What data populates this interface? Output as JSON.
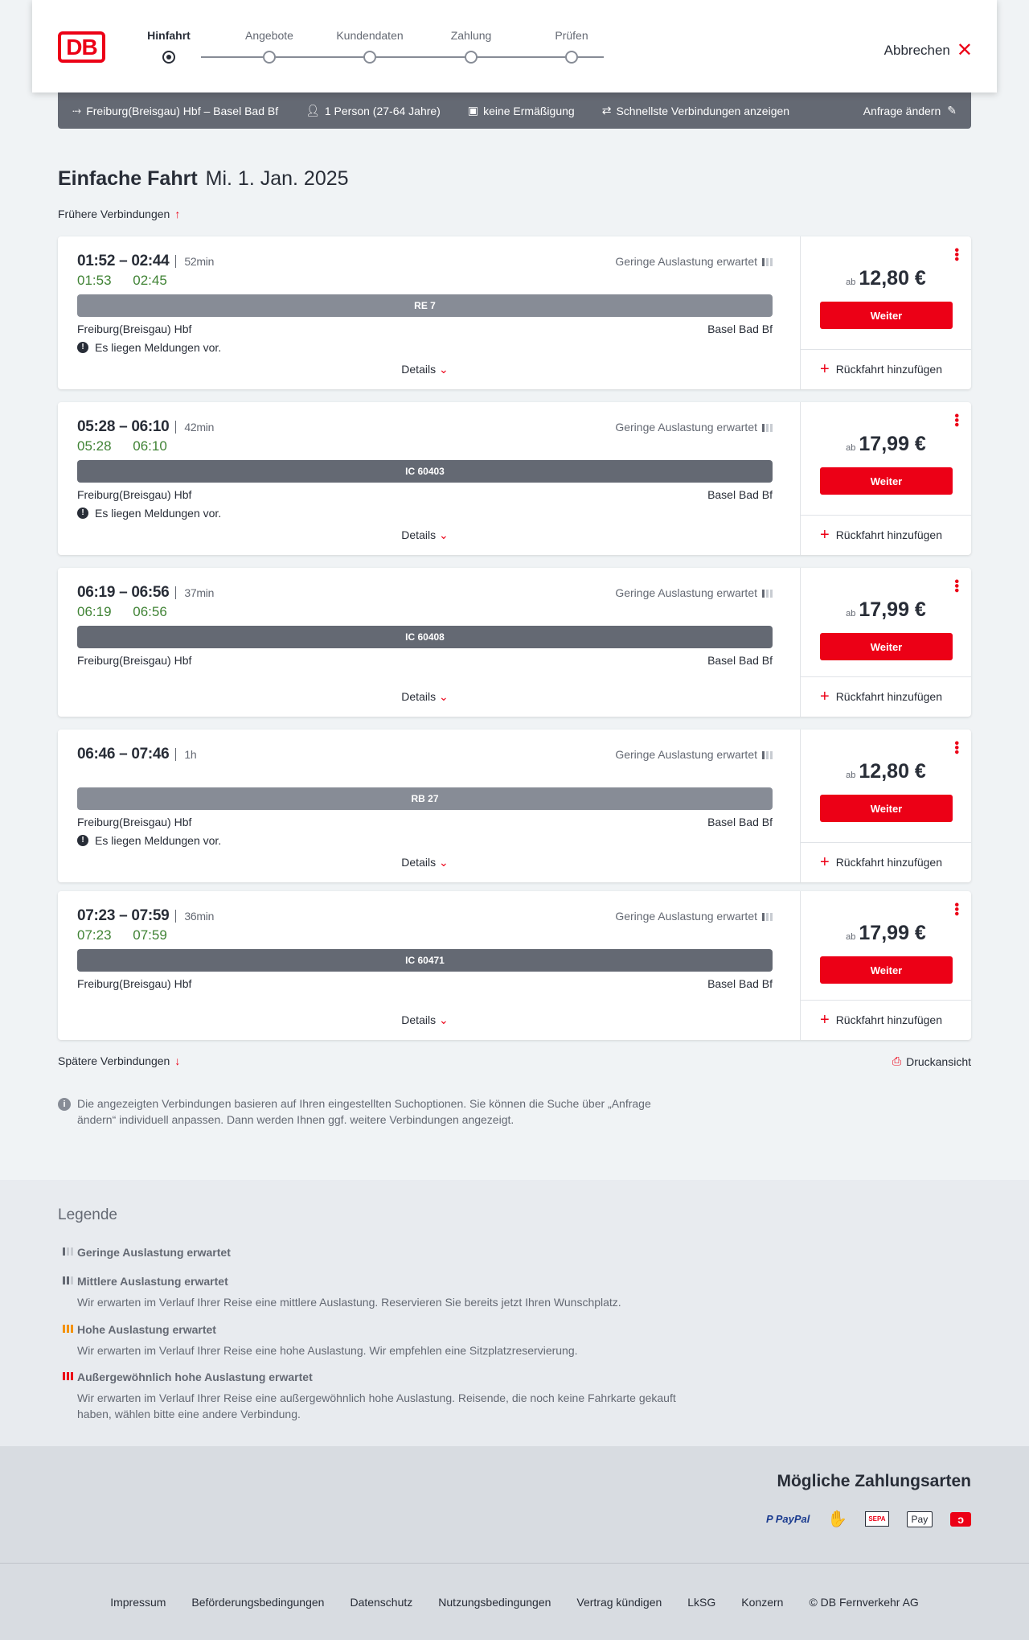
{
  "header": {
    "logo": "DB",
    "steps": [
      "Hinfahrt",
      "Angebote",
      "Kundendaten",
      "Zahlung",
      "Prüfen"
    ],
    "active_step": 0,
    "cancel": "Abbrechen"
  },
  "search": {
    "route": "Freiburg(Breisgau) Hbf – Basel Bad Bf",
    "passengers": "1 Person (27-64 Jahre)",
    "discount": "keine Ermäßigung",
    "option": "Schnellste Verbindungen anzeigen",
    "edit": "Anfrage ändern"
  },
  "page": {
    "title": "Einfache Fahrt",
    "date": "Mi. 1. Jan. 2025",
    "earlier": "Frühere Verbindungen",
    "later": "Spätere Verbindungen",
    "print": "Druckansicht",
    "info": "Die angezeigten Verbindungen basieren auf Ihren eingestellten Suchoptionen. Sie können die Suche über „Anfrage ändern“ individuell anpassen. Dann werden Ihnen ggf. weitere Verbindungen angezeigt."
  },
  "labels": {
    "details": "Details",
    "continue": "Weiter",
    "return": "Rückfahrt hinzufügen",
    "from_prefix": "ab"
  },
  "colors": {
    "accent": "#ec0016",
    "realtime": "#408335",
    "regional": "#878c96",
    "ic": "#646973"
  },
  "connections": [
    {
      "times": "01:52 – 02:44",
      "duration": "52min",
      "occupancy": "Geringe Auslastung erwartet",
      "rt": "01:53 02:45",
      "train": "RE 7",
      "type": "regional",
      "from": "Freiburg(Breisgau) Hbf",
      "to": "Basel Bad Bf",
      "message": "Es liegen Meldungen vor.",
      "price": "12,80 €"
    },
    {
      "times": "05:28 – 06:10",
      "duration": "42min",
      "occupancy": "Geringe Auslastung erwartet",
      "rt": "05:28 06:10",
      "train": "IC 60403",
      "type": "ic",
      "from": "Freiburg(Breisgau) Hbf",
      "to": "Basel Bad Bf",
      "message": "Es liegen Meldungen vor.",
      "price": "17,99 €"
    },
    {
      "times": "06:19 – 06:56",
      "duration": "37min",
      "occupancy": "Geringe Auslastung erwartet",
      "rt": "06:19 06:56",
      "train": "IC 60408",
      "type": "ic",
      "from": "Freiburg(Breisgau) Hbf",
      "to": "Basel Bad Bf",
      "message": null,
      "price": "17,99 €"
    },
    {
      "times": "06:46 – 07:46",
      "duration": "1h",
      "occupancy": "Geringe Auslastung erwartet",
      "rt": null,
      "train": "RB 27",
      "type": "regional",
      "from": "Freiburg(Breisgau) Hbf",
      "to": "Basel Bad Bf",
      "message": "Es liegen Meldungen vor.",
      "price": "12,80 €"
    },
    {
      "times": "07:23 – 07:59",
      "duration": "36min",
      "occupancy": "Geringe Auslastung erwartet",
      "rt": "07:23 07:59",
      "train": "IC 60471",
      "type": "ic",
      "from": "Freiburg(Breisgau) Hbf",
      "to": "Basel Bad Bf",
      "message": null,
      "price": "17,99 €"
    }
  ],
  "legend": {
    "title": "Legende",
    "items": [
      {
        "title": "Geringe Auslastung erwartet",
        "text": "",
        "level": 1,
        "color": "#646973"
      },
      {
        "title": "Mittlere Auslastung erwartet",
        "text": "Wir erwarten im Verlauf Ihrer Reise eine mittlere Auslastung. Reservieren Sie bereits jetzt Ihren Wunschplatz.",
        "level": 2,
        "color": "#646973"
      },
      {
        "title": "Hohe Auslastung erwartet",
        "text": "Wir erwarten im Verlauf Ihrer Reise eine hohe Auslastung. Wir empfehlen eine Sitzplatzreservierung.",
        "level": 3,
        "color": "#f39200"
      },
      {
        "title": "Außergewöhnlich hohe Auslastung erwartet",
        "text": "Wir erwarten im Verlauf Ihrer Reise eine außergewöhnlich hohe Auslastung. Reisende, die noch keine Fahrkarte gekauft haben, wählen bitte eine andere Verbindung.",
        "level": 4,
        "color": "#ec0016"
      }
    ]
  },
  "payment": {
    "title": "Mögliche Zahlungsarten",
    "methods": [
      "PayPal",
      "Kreditkarte",
      "SEPA",
      "Apple Pay",
      "Bonus"
    ]
  },
  "footer": [
    "Impressum",
    "Beförderungsbedingungen",
    "Datenschutz",
    "Nutzungsbedingungen",
    "Vertrag kündigen",
    "LkSG",
    "Konzern",
    "© DB Fernverkehr AG"
  ]
}
